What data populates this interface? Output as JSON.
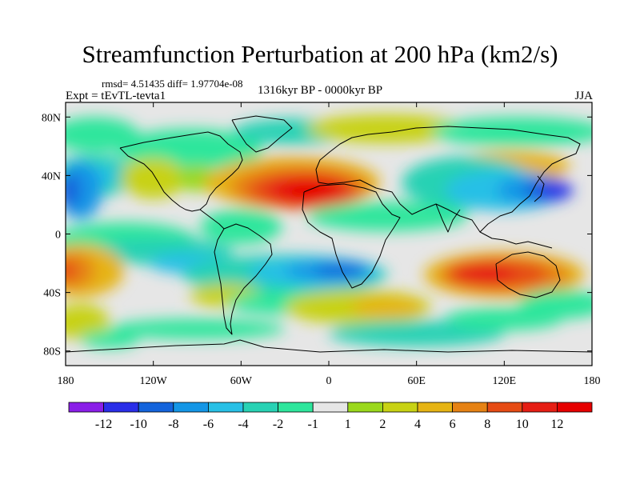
{
  "chart_data": {
    "type": "heatmap",
    "title": "Streamfunction Perturbation at 200 hPa (km2/s)",
    "stats_text": "rmsd= 4.51435 diff= 1.97704e-08",
    "experiment_text": "Expt = tEvTL-tevta1",
    "period_text": "1316kyr BP - 0000kyr BP",
    "season_text": "JJA",
    "xlim": [
      -180,
      180
    ],
    "ylim": [
      -90,
      90
    ],
    "x_ticks": [
      {
        "value": -180,
        "label": "180"
      },
      {
        "value": -120,
        "label": "120W"
      },
      {
        "value": -60,
        "label": "60W"
      },
      {
        "value": 0,
        "label": "0"
      },
      {
        "value": 60,
        "label": "60E"
      },
      {
        "value": 120,
        "label": "120E"
      },
      {
        "value": 180,
        "label": "180"
      }
    ],
    "y_ticks": [
      {
        "value": 80,
        "label": "80N"
      },
      {
        "value": 40,
        "label": "40N"
      },
      {
        "value": 0,
        "label": "0"
      },
      {
        "value": -40,
        "label": "40S"
      },
      {
        "value": -80,
        "label": "80S"
      }
    ],
    "colorbar": {
      "levels": [
        -12,
        -10,
        -8,
        -6,
        -4,
        -2,
        -1,
        1,
        2,
        4,
        6,
        8,
        10,
        12
      ],
      "labels": [
        "-12",
        "-10",
        "-8",
        "-6",
        "-4",
        "-2",
        "-1",
        "1",
        "2",
        "4",
        "6",
        "8",
        "10",
        "12"
      ],
      "colors": [
        "#8a1ee8",
        "#2a2ee8",
        "#1464dc",
        "#1496e6",
        "#28c0e6",
        "#28d2b4",
        "#2ee69c",
        "#e6e6e6",
        "#9ad81c",
        "#c8d214",
        "#e6b414",
        "#e68214",
        "#e64b14",
        "#e61e14",
        "#e60000"
      ]
    },
    "field_features": [
      {
        "region": "North Africa / subtropical Atlantic",
        "lon": -15,
        "lat": 30,
        "value": 12
      },
      {
        "region": "Northwest Pacific",
        "lon": 150,
        "lat": 30,
        "value": -12
      },
      {
        "region": "Australia",
        "lon": 120,
        "lat": -27,
        "value": 10
      },
      {
        "region": "South Atlantic",
        "lon": -5,
        "lat": -27,
        "value": -10
      },
      {
        "region": "Southeast Pacific",
        "lon": -175,
        "lat": -25,
        "value": 8
      },
      {
        "region": "North Atlantic high latitudes",
        "lon": -40,
        "lat": 55,
        "value": 4
      },
      {
        "region": "Equatorial Pacific",
        "lon": -130,
        "lat": 0,
        "value": -6
      }
    ]
  }
}
